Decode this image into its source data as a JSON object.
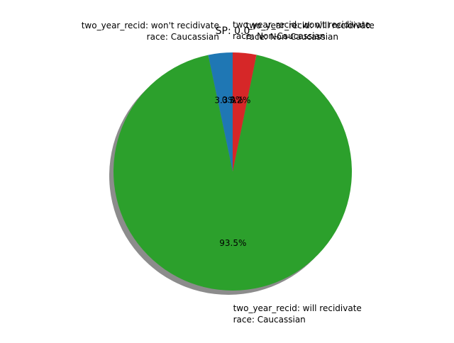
{
  "chart_data": {
    "type": "pie",
    "title": "SP: 0.0",
    "shadow": true,
    "start_angle_deg": 90,
    "direction": "counterclockwise",
    "slices": [
      {
        "label_lines": [
          "two_year_recid: won't recidivate",
          "race: Non-Caucassian"
        ],
        "value_pct": 0.0,
        "pct_label": "0.0%",
        "color": "#ff7f0e"
      },
      {
        "label_lines": [
          "two_year_recid: won't recidivate",
          "race: Caucassian"
        ],
        "value_pct": 3.3,
        "pct_label": "3.3%",
        "color": "#1f77b4"
      },
      {
        "label_lines": [
          "two_year_recid: will recidivate",
          "race: Caucassian"
        ],
        "value_pct": 93.5,
        "pct_label": "93.5%",
        "color": "#2ca02c"
      },
      {
        "label_lines": [
          "two_year_recid: will recidivate",
          "race: Non-Caucassian"
        ],
        "value_pct": 3.2,
        "pct_label": "3.2%",
        "color": "#d62728"
      }
    ]
  }
}
